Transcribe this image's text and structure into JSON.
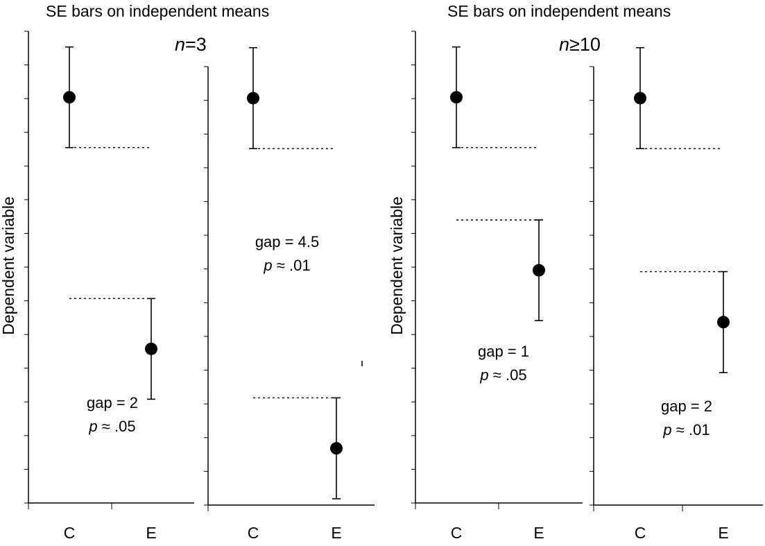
{
  "titles": {
    "left": "SE bars on independent means",
    "right": "SE bars on independent means"
  },
  "sample_sizes": {
    "left": {
      "italic": "n",
      "rest": "=3"
    },
    "right": {
      "italic": "n",
      "rest": "≥10"
    }
  },
  "ylabel": "Dependent variable",
  "colors": {
    "axis": "#000000",
    "marker": "#000000",
    "background": "#ffffff"
  },
  "chart_data": [
    {
      "type": "scatter",
      "group": "n=3",
      "categories": [
        "C",
        "E"
      ],
      "series": [
        {
          "values": [
            12.9,
            4.9
          ],
          "se": [
            1.6,
            1.6
          ]
        }
      ],
      "reference_lines": "dotted lines at inner ends of error bars",
      "annotation": {
        "gap_text": "gap = 2",
        "p_italic": "p",
        "p_rest": " ≈ .05"
      },
      "ylim": [
        0,
        15
      ]
    },
    {
      "type": "scatter",
      "group": "n=3",
      "categories": [
        "C",
        "E"
      ],
      "series": [
        {
          "values": [
            12.9,
            1.8
          ],
          "se": [
            1.6,
            1.6
          ]
        }
      ],
      "reference_lines": "dotted lines at inner ends of error bars",
      "annotation": {
        "gap_text": "gap = 4.5",
        "p_italic": "p",
        "p_rest": " ≈ .01"
      },
      "ylim": [
        0,
        13.9
      ]
    },
    {
      "type": "scatter",
      "group": "n≥10",
      "categories": [
        "C",
        "E"
      ],
      "series": [
        {
          "values": [
            12.9,
            7.4
          ],
          "se": [
            1.6,
            1.6
          ]
        }
      ],
      "reference_lines": "dotted lines at inner ends of error bars",
      "annotation": {
        "gap_text": "gap = 1",
        "p_italic": "p",
        "p_rest": " ≈ .05"
      },
      "ylim": [
        0,
        15
      ]
    },
    {
      "type": "scatter",
      "group": "n≥10",
      "categories": [
        "C",
        "E"
      ],
      "series": [
        {
          "values": [
            12.9,
            5.8
          ],
          "se": [
            1.6,
            1.6
          ]
        }
      ],
      "reference_lines": "dotted lines at inner ends of error bars",
      "annotation": {
        "gap_text": "gap = 2",
        "p_italic": "p",
        "p_rest": " ≈ .01"
      },
      "ylim": [
        0,
        13.9
      ]
    }
  ]
}
